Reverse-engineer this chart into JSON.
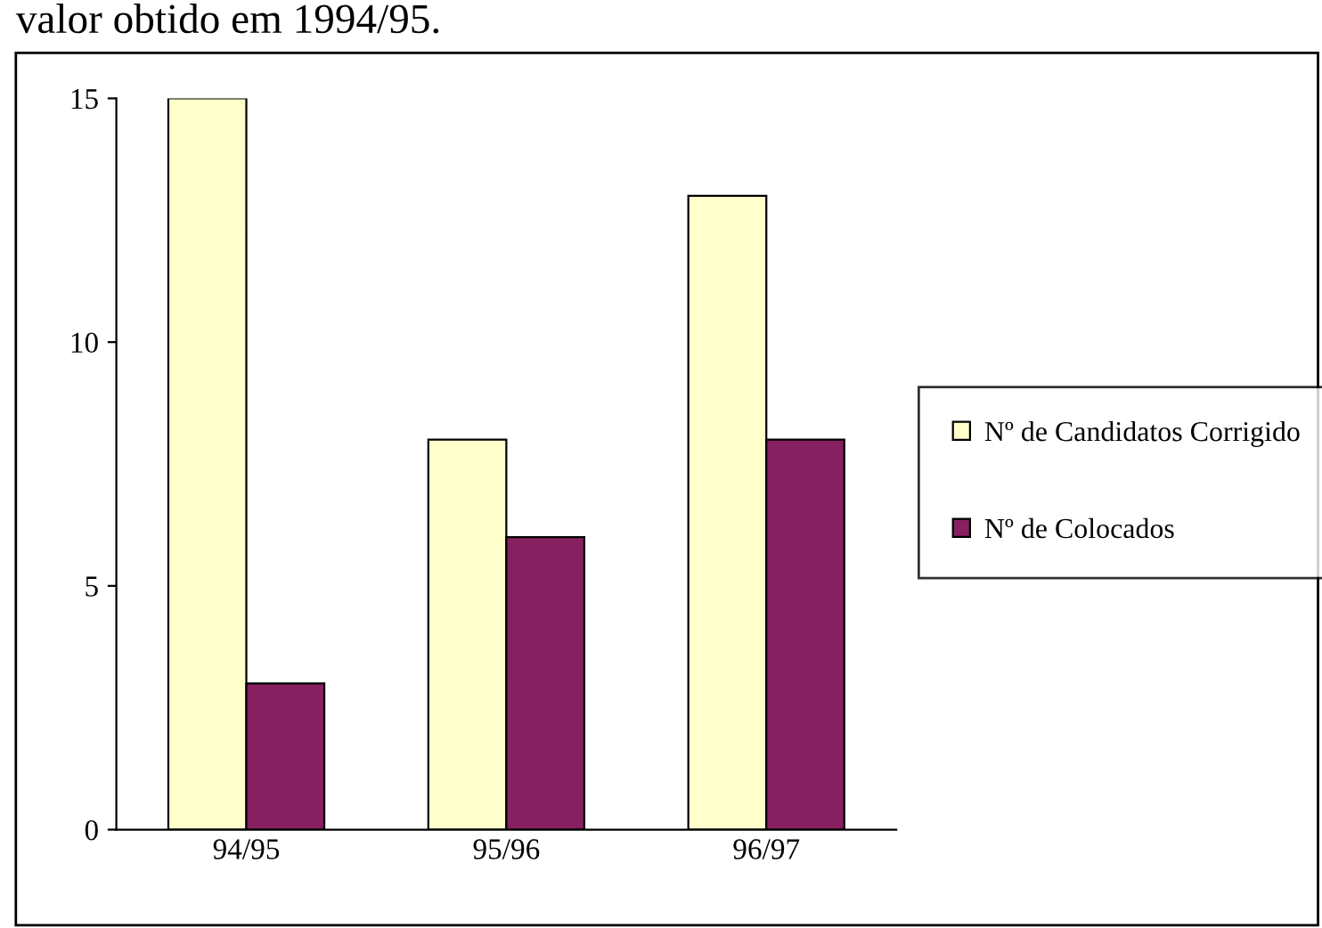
{
  "chart_data": {
    "type": "bar",
    "annotations": [
      "valor obtido em 1994/95."
    ],
    "categories": [
      "94/95",
      "95/96",
      "96/97"
    ],
    "series": [
      {
        "name": "Nº de Candidatos Corrigido",
        "color": "#ffffcc",
        "values": [
          15,
          8,
          13
        ]
      },
      {
        "name": "Nº de Colocados",
        "color": "#862060",
        "values": [
          3,
          6,
          8
        ]
      }
    ],
    "ylim": [
      0,
      15
    ],
    "yticks": [
      0,
      5,
      10,
      15
    ],
    "grid": false,
    "legend": "right"
  }
}
